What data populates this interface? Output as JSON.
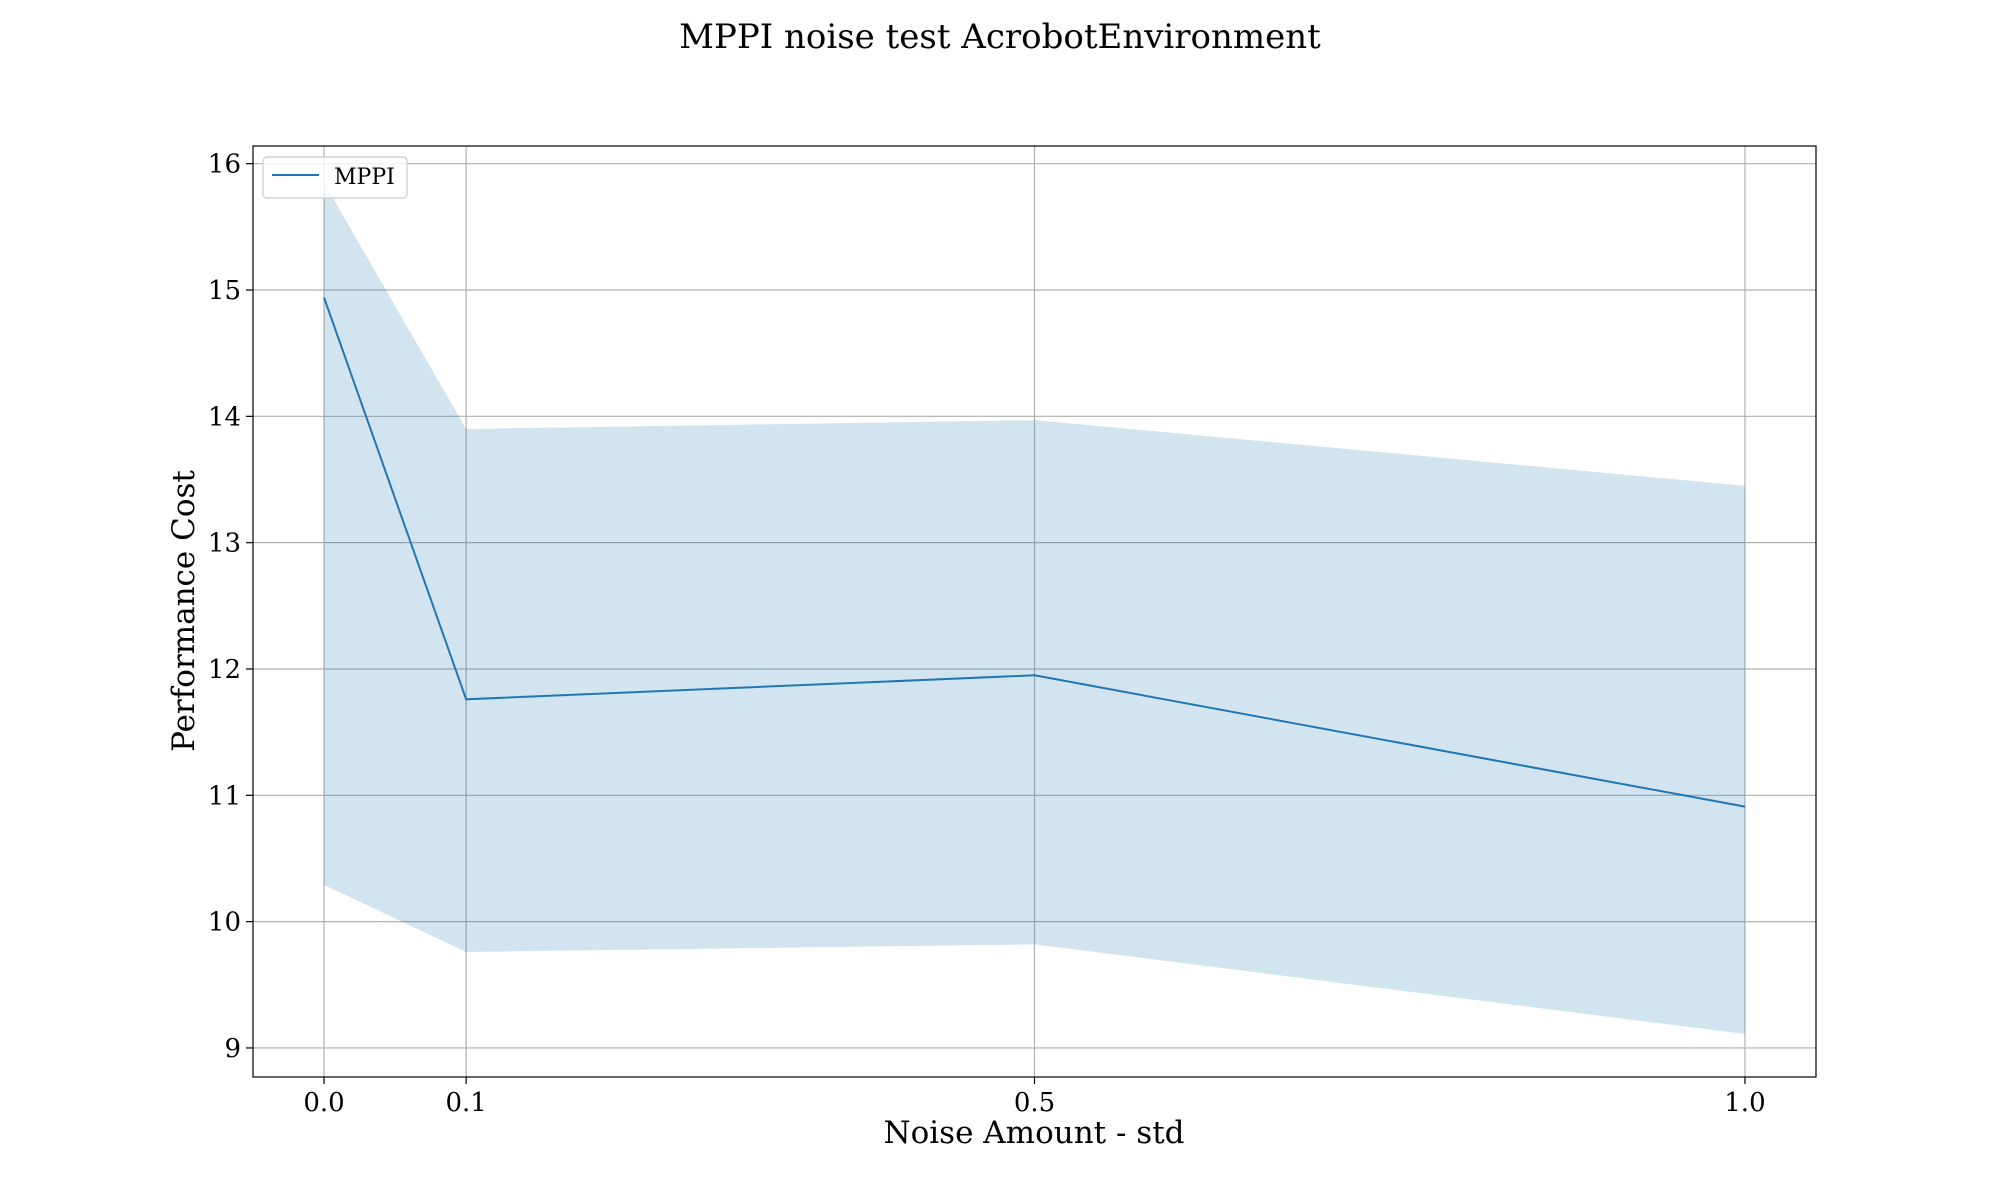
{
  "chart_data": {
    "type": "line",
    "title": "MPPI noise test AcrobotEnvironment",
    "xlabel": "Noise Amount - std",
    "ylabel": "Performance Cost",
    "x": [
      0.0,
      0.1,
      0.5,
      1.0
    ],
    "x_tick_labels": [
      "0.0",
      "0.1",
      "0.5",
      "1.0"
    ],
    "y_ticks": [
      9,
      10,
      11,
      12,
      13,
      14,
      15,
      16
    ],
    "xlim": [
      -0.05,
      1.05
    ],
    "ylim": [
      8.77,
      16.14
    ],
    "grid": true,
    "legend_position": "top-left",
    "series": [
      {
        "name": "MPPI",
        "color": "#1f77b4",
        "values": [
          14.94,
          11.76,
          11.95,
          10.91
        ],
        "band_upper": [
          15.85,
          13.9,
          13.97,
          13.45
        ],
        "band_lower": [
          10.29,
          9.76,
          9.82,
          9.11
        ],
        "band_color": "#1f77b4",
        "band_opacity": 0.2
      }
    ]
  }
}
